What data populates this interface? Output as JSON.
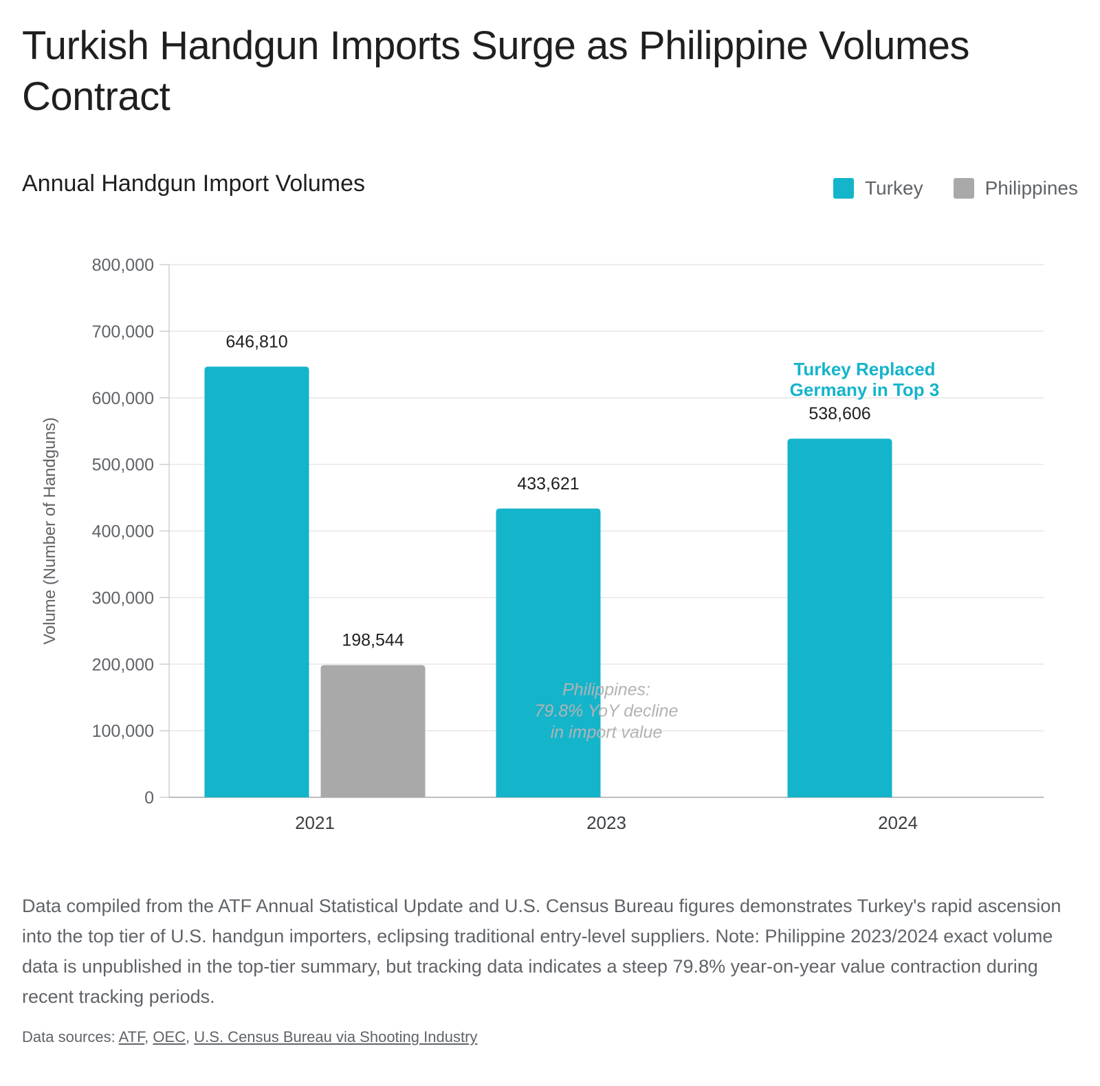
{
  "headline": "Turkish Handgun Imports Surge as Philippine Volumes Contract",
  "chart_title": "Annual Handgun Import Volumes",
  "legend": [
    {
      "label": "Turkey",
      "color": "#14b4cb"
    },
    {
      "label": "Philippines",
      "color": "#a9a9a9"
    }
  ],
  "chart_data": {
    "type": "bar",
    "categories": [
      "2021",
      "2023",
      "2024"
    ],
    "series": [
      {
        "name": "Turkey",
        "color": "#14b4cb",
        "values": [
          646810,
          433621,
          538606
        ]
      },
      {
        "name": "Philippines",
        "color": "#a9a9a9",
        "values": [
          198544,
          null,
          null
        ]
      }
    ],
    "data_labels": {
      "Turkey": [
        "646,810",
        "433,621",
        "538,606"
      ],
      "Philippines": [
        "198,544",
        "",
        ""
      ]
    },
    "ylabel": "Volume (Number of Handguns)",
    "ylim": [
      0,
      800000
    ],
    "yticks": [
      0,
      100000,
      200000,
      300000,
      400000,
      500000,
      600000,
      700000,
      800000
    ],
    "ytick_labels": [
      "0",
      "100,000",
      "200,000",
      "300,000",
      "400,000",
      "500,000",
      "600,000",
      "700,000",
      "800,000"
    ],
    "grid": true,
    "legend_position": "top-right",
    "annotations": [
      {
        "lines": [
          "Turkey Replaced",
          "Germany in Top 3"
        ],
        "category": "2024",
        "color": "#14b4cb",
        "style": "bold"
      },
      {
        "lines": [
          "Philippines:",
          "79.8% YoY decline",
          "in import value"
        ],
        "category": "2023",
        "color": "#b3b3b3",
        "style": "italic"
      }
    ]
  },
  "description": "Data compiled from the ATF Annual Statistical Update and U.S. Census Bureau figures demonstrates Turkey's rapid ascension into the top tier of U.S. handgun importers, eclipsing traditional entry-level suppliers. Note: Philippine 2023/2024 exact volume data is unpublished in the top-tier summary, but tracking data indicates a steep 79.8% year-on-year value contraction during recent tracking periods.",
  "sources": {
    "prefix": "Data sources: ",
    "links": [
      "ATF",
      "OEC",
      "U.S. Census Bureau via Shooting Industry"
    ]
  }
}
